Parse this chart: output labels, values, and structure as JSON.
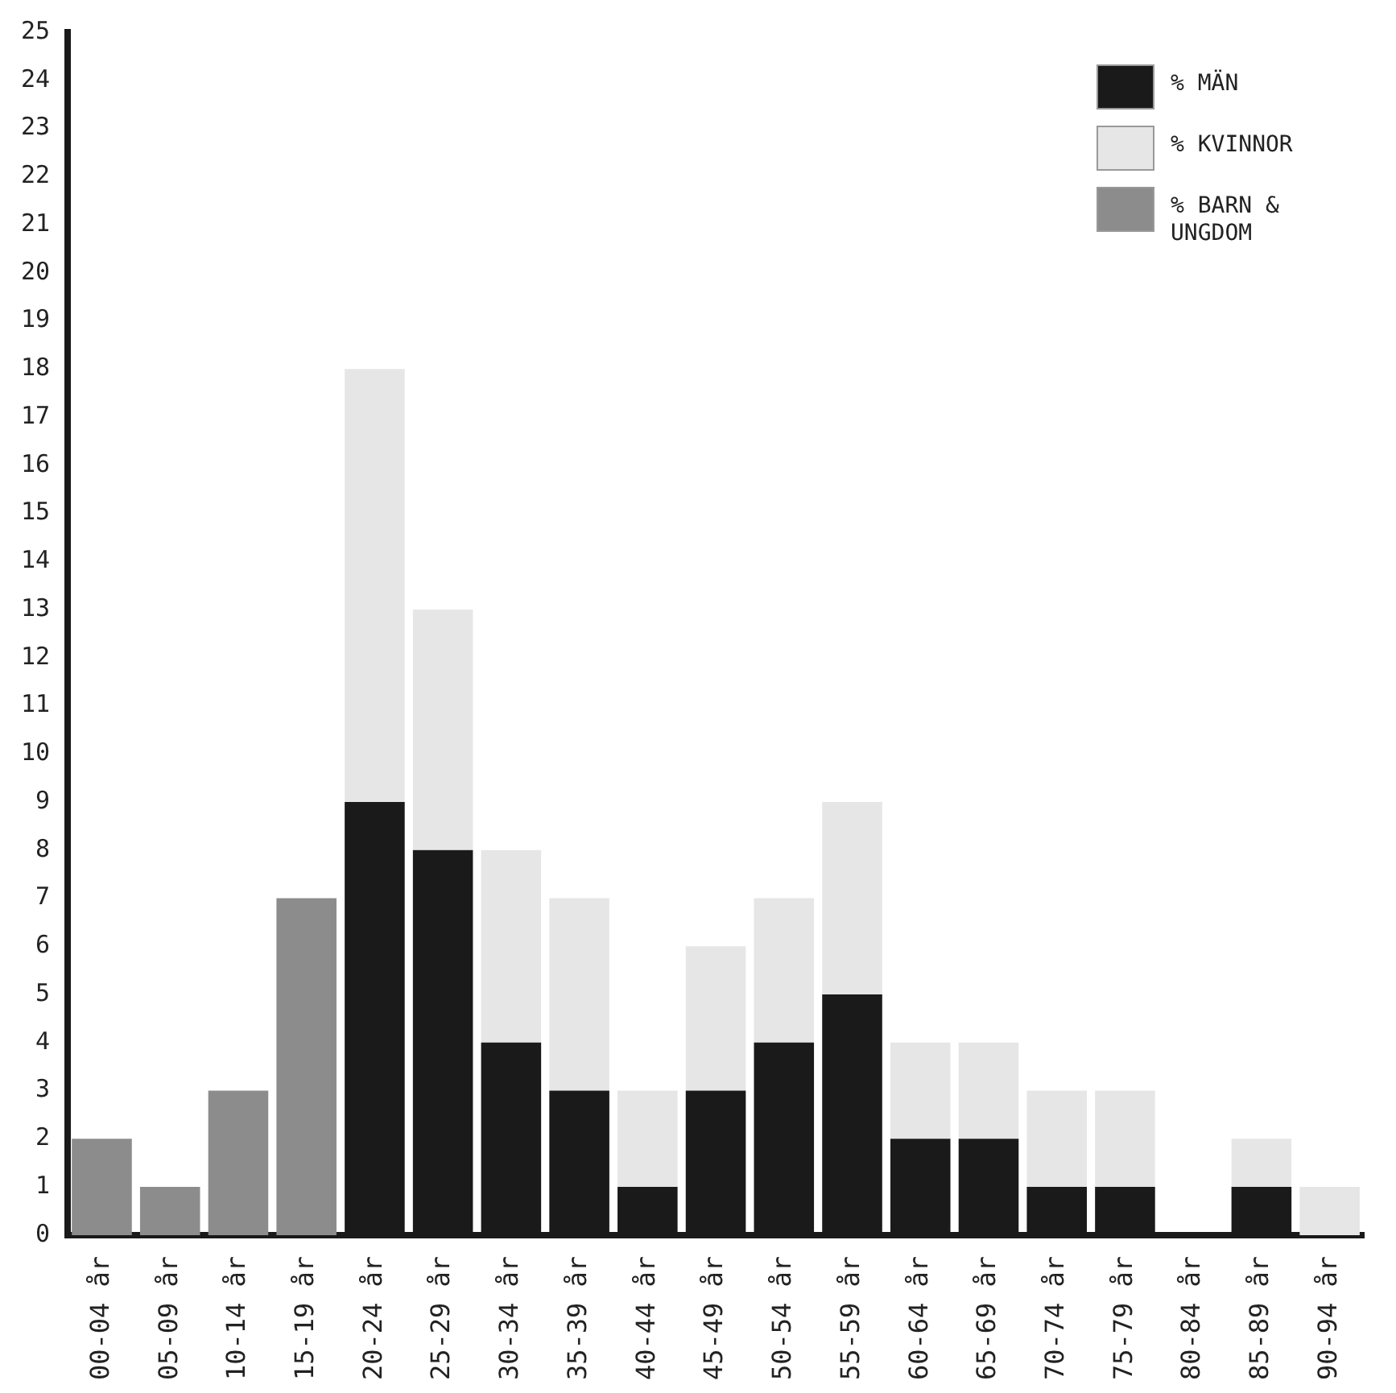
{
  "chart_data": {
    "type": "bar",
    "stacked": true,
    "categories": [
      "00-04 år",
      "05-09 år",
      "10-14 år",
      "15-19 år",
      "20-24 år",
      "25-29 år",
      "30-34 år",
      "35-39 år",
      "40-44 år",
      "45-49 år",
      "50-54 år",
      "55-59 år",
      "60-64 år",
      "65-69 år",
      "70-74 år",
      "75-79 år",
      "80-84 år",
      "85-89 år",
      "90-94 år"
    ],
    "series": [
      {
        "name": "% MÄN",
        "color": "#1a1a1a",
        "values": [
          0,
          0,
          0,
          0,
          9,
          8,
          4,
          3,
          1,
          3,
          4,
          5,
          2,
          2,
          1,
          1,
          0,
          1,
          0
        ]
      },
      {
        "name": "% KVINNOR",
        "color": "#e6e6e6",
        "values": [
          0,
          0,
          0,
          0,
          9,
          5,
          4,
          4,
          2,
          3,
          3,
          4,
          2,
          2,
          2,
          2,
          0,
          1,
          1
        ]
      },
      {
        "name": "% BARN & UNGDOM",
        "color": "#8c8c8c",
        "values": [
          2,
          1,
          3,
          7,
          0,
          0,
          0,
          0,
          0,
          0,
          0,
          0,
          0,
          0,
          0,
          0,
          0,
          0,
          0
        ]
      }
    ],
    "ylim": [
      0,
      25
    ],
    "yticks": [
      0,
      1,
      2,
      3,
      4,
      5,
      6,
      7,
      8,
      9,
      10,
      11,
      12,
      13,
      14,
      15,
      16,
      17,
      18,
      19,
      20,
      21,
      22,
      23,
      24,
      25
    ],
    "grid": false,
    "legend": "top right"
  }
}
